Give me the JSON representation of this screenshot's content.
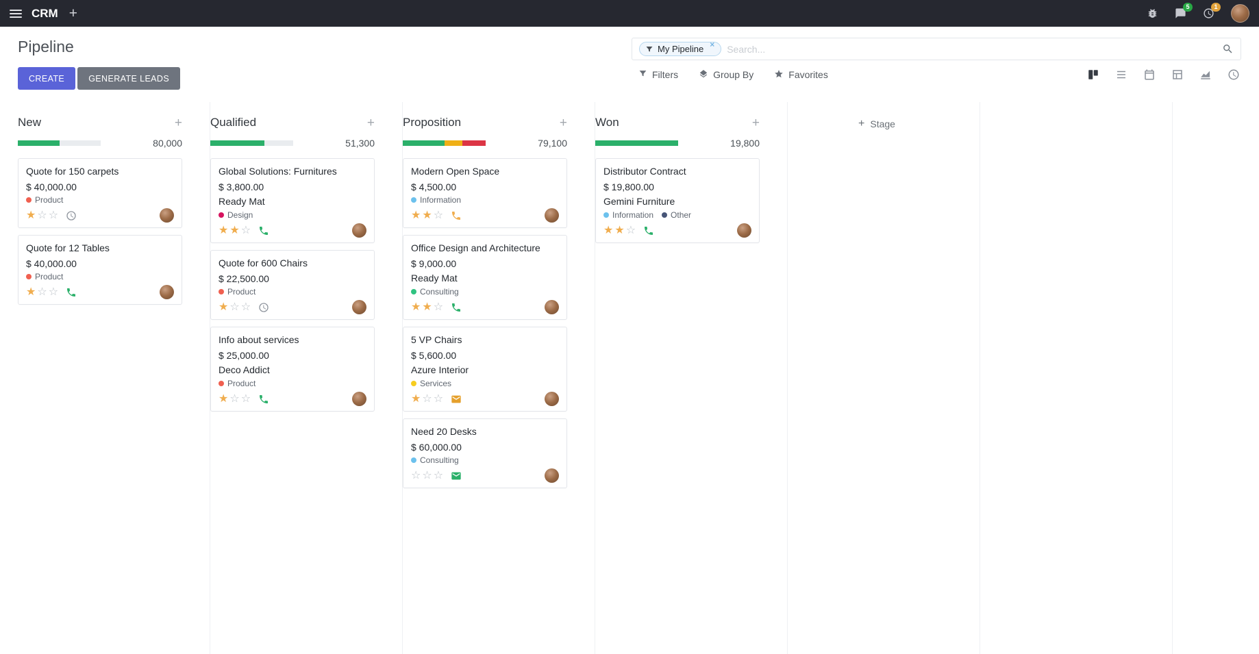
{
  "navbar": {
    "app_name": "CRM",
    "messages_badge": "5",
    "activities_badge": "1"
  },
  "control_panel": {
    "title": "Pipeline",
    "create_label": "CREATE",
    "generate_leads_label": "GENERATE LEADS",
    "filters_label": "Filters",
    "group_by_label": "Group By",
    "favorites_label": "Favorites",
    "search": {
      "facet_label": "My Pipeline",
      "remove_facet": "×",
      "placeholder": "Search..."
    }
  },
  "board": {
    "add_stage_label": "Stage",
    "columns": [
      {
        "name": "New",
        "total": "80,000",
        "progress": [
          {
            "color": "#2bb06a",
            "pct": 50
          }
        ],
        "cards": [
          {
            "title": "Quote for 150 carpets",
            "amount": "$ 40,000.00",
            "partner": "",
            "tags": [
              {
                "label": "Product",
                "color": "#f06050"
              }
            ],
            "stars": 1,
            "activity": {
              "type": "clock",
              "color": "#8f959e"
            }
          },
          {
            "title": "Quote for 12 Tables",
            "amount": "$ 40,000.00",
            "partner": "",
            "tags": [
              {
                "label": "Product",
                "color": "#f06050"
              }
            ],
            "stars": 1,
            "activity": {
              "type": "phone",
              "color": "#2bb06a"
            }
          }
        ]
      },
      {
        "name": "Qualified",
        "total": "51,300",
        "progress": [
          {
            "color": "#2bb06a",
            "pct": 65
          }
        ],
        "cards": [
          {
            "title": "Global Solutions: Furnitures",
            "amount": "$ 3,800.00",
            "partner": "Ready Mat",
            "tags": [
              {
                "label": "Design",
                "color": "#d6145f"
              }
            ],
            "stars": 2,
            "activity": {
              "type": "phone",
              "color": "#2bb06a"
            }
          },
          {
            "title": "Quote for 600 Chairs",
            "amount": "$ 22,500.00",
            "partner": "",
            "tags": [
              {
                "label": "Product",
                "color": "#f06050"
              }
            ],
            "stars": 1,
            "activity": {
              "type": "clock",
              "color": "#8f959e"
            }
          },
          {
            "title": "Info about services",
            "amount": "$ 25,000.00",
            "partner": "Deco Addict",
            "tags": [
              {
                "label": "Product",
                "color": "#f06050"
              }
            ],
            "stars": 1,
            "activity": {
              "type": "phone",
              "color": "#2bb06a"
            }
          }
        ]
      },
      {
        "name": "Proposition",
        "total": "79,100",
        "progress": [
          {
            "color": "#2bb06a",
            "pct": 50
          },
          {
            "color": "#efb016",
            "pct": 22
          },
          {
            "color": "#dc3545",
            "pct": 28
          }
        ],
        "cards": [
          {
            "title": "Modern Open Space",
            "amount": "$ 4,500.00",
            "partner": "",
            "tags": [
              {
                "label": "Information",
                "color": "#6cc1ed"
              }
            ],
            "stars": 2,
            "activity": {
              "type": "phone",
              "color": "#f0ad4e"
            }
          },
          {
            "title": "Office Design and Architecture",
            "amount": "$ 9,000.00",
            "partner": "Ready Mat",
            "tags": [
              {
                "label": "Consulting",
                "color": "#30c381"
              }
            ],
            "stars": 2,
            "activity": {
              "type": "phone",
              "color": "#2bb06a"
            }
          },
          {
            "title": "5 VP Chairs",
            "amount": "$ 5,600.00",
            "partner": "Azure Interior",
            "tags": [
              {
                "label": "Services",
                "color": "#f7cd1f"
              }
            ],
            "stars": 1,
            "activity": {
              "type": "envelope",
              "color": "#e5a02c"
            }
          },
          {
            "title": "Need 20 Desks",
            "amount": "$ 60,000.00",
            "partner": "",
            "tags": [
              {
                "label": "Consulting",
                "color": "#6cc1ed"
              }
            ],
            "stars": 0,
            "activity": {
              "type": "envelope",
              "color": "#2bb06a"
            }
          }
        ]
      },
      {
        "name": "Won",
        "total": "19,800",
        "progress": [
          {
            "color": "#2bb06a",
            "pct": 100
          }
        ],
        "cards": [
          {
            "title": "Distributor Contract",
            "amount": "$ 19,800.00",
            "partner": "Gemini Furniture",
            "tags": [
              {
                "label": "Information",
                "color": "#6cc1ed"
              },
              {
                "label": "Other",
                "color": "#475577"
              }
            ],
            "stars": 2,
            "activity": {
              "type": "phone",
              "color": "#2bb06a"
            }
          }
        ]
      }
    ]
  }
}
